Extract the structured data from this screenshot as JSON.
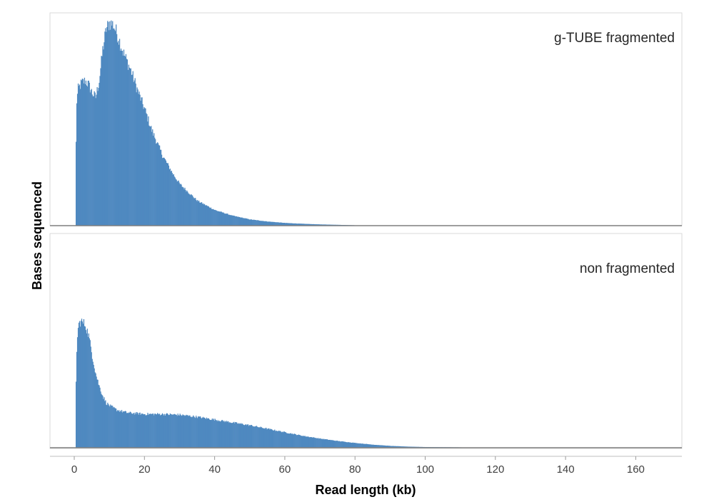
{
  "chart_data": {
    "type": "bar",
    "xlabel": "Read length (kb)",
    "ylabel": "Bases sequenced",
    "xlim": [
      -5,
      173
    ],
    "x_ticks": [
      "0",
      "20",
      "40",
      "60",
      "80",
      "100",
      "120",
      "140",
      "160"
    ],
    "x_tick_values": [
      0,
      20,
      40,
      60,
      80,
      100,
      120,
      140,
      160
    ],
    "bin_width_kb": 0.2,
    "y_tick_labels_shown": false,
    "grid": false,
    "legend": "none",
    "bar_color": "#4f89c0",
    "series": [
      {
        "name": "g-TUBE fragmented",
        "ylim": [
          0,
          1.0
        ],
        "profile_x": [
          0,
          0.6,
          1,
          2,
          3,
          4,
          5,
          6,
          7,
          8,
          9,
          10,
          11,
          12,
          13,
          14,
          15,
          16,
          17,
          18,
          20,
          22,
          25,
          28,
          30,
          35,
          40,
          45,
          50,
          55,
          60,
          65,
          70,
          75,
          80,
          90,
          100,
          120,
          140,
          170
        ],
        "profile_y": [
          0,
          0.6,
          0.66,
          0.69,
          0.7,
          0.68,
          0.64,
          0.62,
          0.7,
          0.85,
          0.95,
          0.98,
          0.97,
          0.93,
          0.88,
          0.83,
          0.79,
          0.75,
          0.7,
          0.65,
          0.56,
          0.46,
          0.34,
          0.25,
          0.2,
          0.12,
          0.075,
          0.048,
          0.03,
          0.02,
          0.013,
          0.009,
          0.006,
          0.004,
          0.002,
          0.001,
          0.0005,
          0.0003,
          0.0001,
          0
        ]
      },
      {
        "name": "non fragmented",
        "ylim": [
          0,
          1.0
        ],
        "profile_x": [
          0,
          0.6,
          1,
          1.5,
          2,
          3,
          4,
          5,
          6,
          7,
          8,
          9,
          10,
          12,
          15,
          20,
          25,
          30,
          35,
          40,
          45,
          50,
          55,
          60,
          65,
          70,
          75,
          80,
          85,
          90,
          95,
          100,
          110,
          120,
          140,
          170
        ],
        "profile_y": [
          0,
          0.7,
          0.86,
          0.9,
          0.9,
          0.88,
          0.8,
          0.66,
          0.53,
          0.44,
          0.37,
          0.32,
          0.3,
          0.27,
          0.25,
          0.24,
          0.24,
          0.235,
          0.22,
          0.2,
          0.18,
          0.16,
          0.135,
          0.11,
          0.085,
          0.065,
          0.048,
          0.034,
          0.022,
          0.013,
          0.008,
          0.005,
          0.003,
          0.0015,
          0.0006,
          0
        ]
      }
    ]
  }
}
